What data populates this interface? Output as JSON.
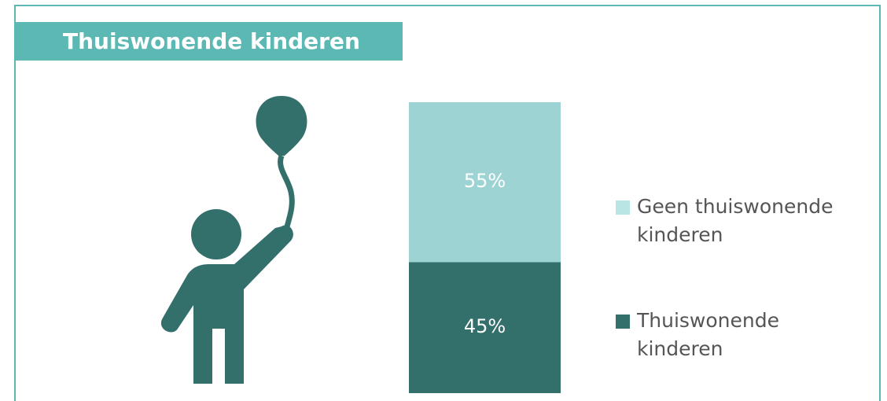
{
  "chart_data": {
    "type": "bar",
    "stacked": true,
    "title": "Thuiswonende kinderen",
    "categories": [
      null
    ],
    "series": [
      {
        "name": "Thuiswonende kinderen",
        "color": "#336f6b",
        "values": [
          45
        ],
        "value_labels": [
          "45%"
        ]
      },
      {
        "name": "Geen thuiswonende kinderen",
        "color": "#9dd4d3",
        "values": [
          55
        ],
        "value_labels": [
          "55%"
        ]
      }
    ],
    "legend": "right"
  }
}
